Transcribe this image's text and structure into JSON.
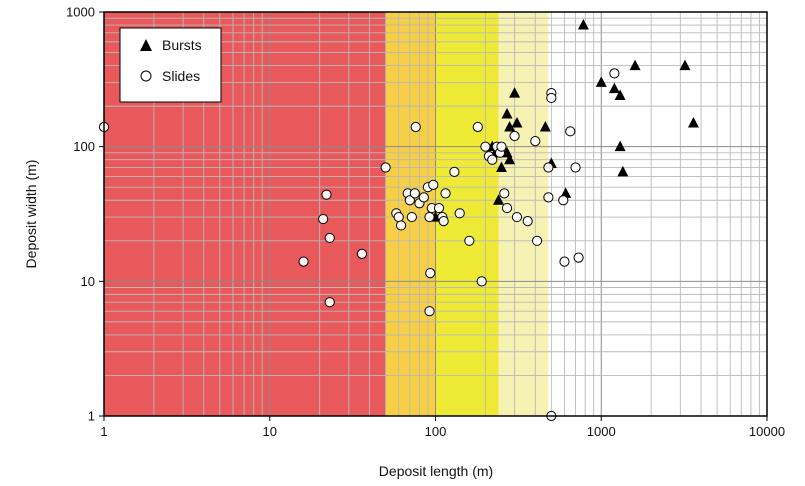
{
  "chart_data": {
    "type": "scatter",
    "title": "",
    "xlabel": "Deposit length (m)",
    "ylabel": "Deposit width (m)",
    "xscale": "log",
    "yscale": "log",
    "xlim": [
      1,
      10000
    ],
    "ylim": [
      1,
      1000
    ],
    "xticks": [
      {
        "value": 1,
        "label": "1"
      },
      {
        "value": 10,
        "label": "10"
      },
      {
        "value": 100,
        "label": "100"
      },
      {
        "value": 1000,
        "label": "1000"
      },
      {
        "value": 10000,
        "label": "10000"
      }
    ],
    "yticks": [
      {
        "value": 1,
        "label": "1"
      },
      {
        "value": 10,
        "label": "10"
      },
      {
        "value": 100,
        "label": "100"
      },
      {
        "value": 1000,
        "label": "1000"
      }
    ],
    "grid": true,
    "legend_position": "top-left",
    "background_bands": [
      {
        "from": 1,
        "to": 50,
        "color": "#e8595c"
      },
      {
        "from": 50,
        "to": 100,
        "color": "#f7cf45"
      },
      {
        "from": 100,
        "to": 240,
        "color": "#eeea36"
      },
      {
        "from": 240,
        "to": 480,
        "color": "#f6f2b4"
      }
    ],
    "series": [
      {
        "name": "Bursts",
        "marker": "triangle",
        "points": [
          [
            780,
            800
          ],
          [
            1600,
            400
          ],
          [
            3200,
            400
          ],
          [
            1000,
            300
          ],
          [
            1200,
            270
          ],
          [
            1300,
            240
          ],
          [
            3600,
            150
          ],
          [
            1300,
            100
          ],
          [
            1350,
            65
          ],
          [
            500,
            75
          ],
          [
            610,
            45
          ],
          [
            300,
            250
          ],
          [
            270,
            175
          ],
          [
            310,
            150
          ],
          [
            280,
            140
          ],
          [
            460,
            140
          ],
          [
            220,
            100
          ],
          [
            230,
            90
          ],
          [
            270,
            90
          ],
          [
            280,
            80
          ],
          [
            250,
            70
          ],
          [
            240,
            40
          ],
          [
            100,
            30
          ]
        ]
      },
      {
        "name": "Slides",
        "marker": "circle",
        "points": [
          [
            1,
            140
          ],
          [
            16,
            14
          ],
          [
            21,
            29
          ],
          [
            22,
            44
          ],
          [
            23,
            21
          ],
          [
            23,
            7
          ],
          [
            36,
            16
          ],
          [
            50,
            70
          ],
          [
            58,
            32
          ],
          [
            60,
            30
          ],
          [
            62,
            26
          ],
          [
            68,
            45
          ],
          [
            70,
            40
          ],
          [
            72,
            30
          ],
          [
            75,
            45
          ],
          [
            76,
            140
          ],
          [
            80,
            38
          ],
          [
            85,
            42
          ],
          [
            90,
            50
          ],
          [
            92,
            30
          ],
          [
            93,
            11.5
          ],
          [
            92,
            6
          ],
          [
            95,
            35
          ],
          [
            97,
            52
          ],
          [
            105,
            35
          ],
          [
            110,
            30
          ],
          [
            112,
            28
          ],
          [
            115,
            45
          ],
          [
            130,
            65
          ],
          [
            140,
            32
          ],
          [
            160,
            20
          ],
          [
            180,
            140
          ],
          [
            190,
            10
          ],
          [
            200,
            100
          ],
          [
            210,
            85
          ],
          [
            220,
            80
          ],
          [
            235,
            100
          ],
          [
            245,
            90
          ],
          [
            250,
            100
          ],
          [
            260,
            45
          ],
          [
            270,
            35
          ],
          [
            300,
            120
          ],
          [
            310,
            30
          ],
          [
            360,
            28
          ],
          [
            400,
            110
          ],
          [
            410,
            20
          ],
          [
            480,
            70
          ],
          [
            480,
            42
          ],
          [
            500,
            250
          ],
          [
            500,
            230
          ],
          [
            500,
            1
          ],
          [
            590,
            40
          ],
          [
            600,
            14
          ],
          [
            650,
            130
          ],
          [
            700,
            70
          ],
          [
            730,
            15
          ],
          [
            1200,
            350
          ]
        ]
      }
    ]
  }
}
